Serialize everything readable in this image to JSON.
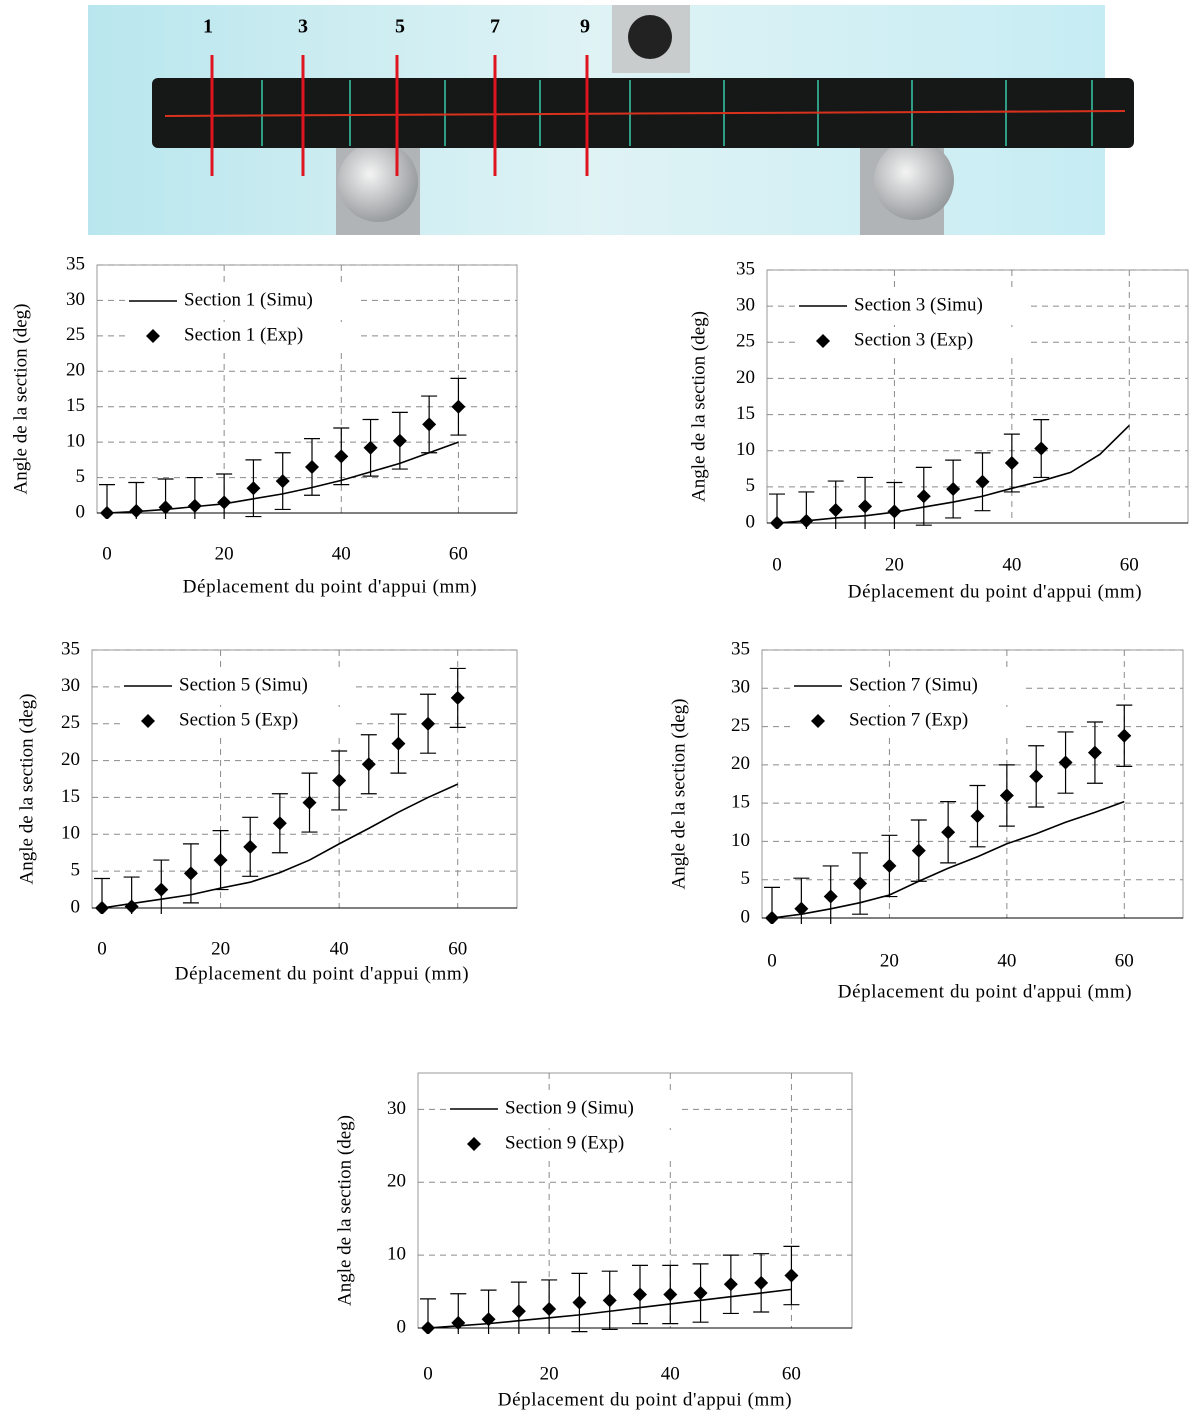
{
  "photo": {
    "section_labels": [
      "1",
      "3",
      "5",
      "7",
      "9"
    ]
  },
  "chart_data": [
    {
      "type": "line",
      "xlabel": "Déplacement du point d'appui (mm)",
      "ylabel": "Angle de la section (deg)",
      "xlim": [
        0,
        70
      ],
      "ylim": [
        0,
        35
      ],
      "xticks": [
        0,
        20,
        40,
        60
      ],
      "yticks": [
        0,
        5,
        10,
        15,
        20,
        25,
        30,
        35
      ],
      "grid": true,
      "legend": "upper left",
      "series": [
        {
          "name": "Section 1 (Simu)",
          "type": "line",
          "color": "#000000",
          "x": [
            0,
            5,
            10,
            15,
            20,
            25,
            30,
            35,
            40,
            45,
            50,
            55,
            60
          ],
          "values": [
            0,
            0.2,
            0.5,
            0.9,
            1.3,
            2,
            2.7,
            3.6,
            4.6,
            5.8,
            7,
            8.5,
            10
          ]
        },
        {
          "name": "Section 1 (Exp)",
          "type": "scatter",
          "color": "#000000",
          "x": [
            0,
            5,
            10,
            15,
            20,
            25,
            30,
            35,
            40,
            45,
            50,
            55,
            60
          ],
          "values": [
            0,
            0.3,
            0.8,
            1,
            1.5,
            3.5,
            4.5,
            6.5,
            8,
            9.2,
            10.2,
            12.5,
            15
          ],
          "errors": [
            4,
            4,
            4,
            4,
            4,
            4,
            4,
            4,
            4,
            4,
            4,
            4,
            4
          ]
        }
      ]
    },
    {
      "type": "line",
      "xlabel": "Déplacement du point d'appui (mm)",
      "ylabel": "Angle de la section (deg)",
      "xlim": [
        0,
        70
      ],
      "ylim": [
        0,
        35
      ],
      "xticks": [
        0,
        20,
        40,
        60
      ],
      "yticks": [
        0,
        5,
        10,
        15,
        20,
        25,
        30,
        35
      ],
      "grid": true,
      "legend": "upper left",
      "series": [
        {
          "name": "Section 3 (Simu)",
          "type": "line",
          "color": "#000000",
          "x": [
            0,
            5,
            10,
            15,
            20,
            25,
            30,
            35,
            40,
            45,
            50,
            55,
            60
          ],
          "values": [
            0,
            0.3,
            0.7,
            1,
            1.5,
            2.2,
            2.9,
            3.7,
            4.8,
            5.8,
            7,
            9.5,
            13.5
          ]
        },
        {
          "name": "Section 3 (Exp)",
          "type": "scatter",
          "color": "#000000",
          "x": [
            0,
            5,
            10,
            15,
            20,
            25,
            30,
            35,
            40,
            45
          ],
          "values": [
            0,
            0.3,
            1.8,
            2.3,
            1.6,
            3.7,
            4.7,
            5.7,
            8.3,
            10.3
          ],
          "errors": [
            4,
            4,
            4,
            4,
            4,
            4,
            4,
            4,
            4,
            4
          ]
        }
      ]
    },
    {
      "type": "line",
      "xlabel": "Déplacement du point d'appui (mm)",
      "ylabel": "Angle de la section (deg)",
      "xlim": [
        0,
        70
      ],
      "ylim": [
        0,
        35
      ],
      "xticks": [
        0,
        20,
        40,
        60
      ],
      "yticks": [
        0,
        5,
        10,
        15,
        20,
        25,
        30,
        35
      ],
      "grid": true,
      "legend": "upper left",
      "series": [
        {
          "name": "Section 5 (Simu)",
          "type": "line",
          "color": "#000000",
          "x": [
            0,
            5,
            10,
            15,
            20,
            25,
            30,
            35,
            40,
            45,
            50,
            55,
            60
          ],
          "values": [
            0,
            0.6,
            1.2,
            1.8,
            2.7,
            3.5,
            4.8,
            6.5,
            8.7,
            10.8,
            13,
            15,
            16.8
          ]
        },
        {
          "name": "Section 5 (Exp)",
          "type": "scatter",
          "color": "#000000",
          "x": [
            0,
            5,
            10,
            15,
            20,
            25,
            30,
            35,
            40,
            45,
            50,
            55,
            60
          ],
          "values": [
            0,
            0.2,
            2.5,
            4.7,
            6.5,
            8.3,
            11.5,
            14.3,
            17.3,
            19.5,
            22.3,
            25,
            28.5
          ],
          "errors": [
            4,
            4,
            4,
            4,
            4,
            4,
            4,
            4,
            4,
            4,
            4,
            4,
            4
          ]
        }
      ]
    },
    {
      "type": "line",
      "xlabel": "Déplacement du point d'appui (mm)",
      "ylabel": "Angle de la section (deg)",
      "xlim": [
        0,
        70
      ],
      "ylim": [
        0,
        35
      ],
      "xticks": [
        0,
        20,
        40,
        60
      ],
      "yticks": [
        0,
        5,
        10,
        15,
        20,
        25,
        30,
        35
      ],
      "grid": true,
      "legend": "upper left",
      "series": [
        {
          "name": "Section 7 (Simu)",
          "type": "line",
          "color": "#000000",
          "x": [
            0,
            5,
            10,
            15,
            20,
            25,
            30,
            35,
            40,
            45,
            50,
            55,
            60
          ],
          "values": [
            0,
            0.5,
            1.2,
            2,
            3,
            4.8,
            6.5,
            8,
            9.7,
            11,
            12.5,
            13.8,
            15.2
          ]
        },
        {
          "name": "Section 7 (Exp)",
          "type": "scatter",
          "color": "#000000",
          "x": [
            0,
            5,
            10,
            15,
            20,
            25,
            30,
            35,
            40,
            45,
            50,
            55,
            60
          ],
          "values": [
            0,
            1.2,
            2.8,
            4.5,
            6.8,
            8.8,
            11.2,
            13.3,
            16,
            18.5,
            20.3,
            21.6,
            23.8
          ],
          "errors": [
            4,
            4,
            4,
            4,
            4,
            4,
            4,
            4,
            4,
            4,
            4,
            4,
            4
          ]
        }
      ]
    },
    {
      "type": "line",
      "xlabel": "Déplacement du point d'appui (mm)",
      "ylabel": "Angle de la section (deg)",
      "xlim": [
        0,
        70
      ],
      "ylim": [
        0,
        35
      ],
      "xticks": [
        0,
        20,
        40,
        60
      ],
      "yticks": [
        0,
        10,
        20,
        30
      ],
      "grid": true,
      "legend": "upper left",
      "series": [
        {
          "name": "Section 9 (Simu)",
          "type": "line",
          "color": "#000000",
          "x": [
            0,
            5,
            10,
            15,
            20,
            25,
            30,
            35,
            40,
            45,
            50,
            55,
            60
          ],
          "values": [
            0,
            0.3,
            0.6,
            1,
            1.4,
            1.8,
            2.3,
            2.8,
            3.3,
            3.8,
            4.3,
            4.8,
            5.3
          ]
        },
        {
          "name": "Section 9 (Exp)",
          "type": "scatter",
          "color": "#000000",
          "x": [
            0,
            5,
            10,
            15,
            20,
            25,
            30,
            35,
            40,
            45,
            50,
            55,
            60
          ],
          "values": [
            0,
            0.7,
            1.2,
            2.3,
            2.6,
            3.5,
            3.8,
            4.6,
            4.6,
            4.8,
            6,
            6.2,
            7.2
          ],
          "errors": [
            4,
            4,
            4,
            4,
            4,
            4,
            4,
            4,
            4,
            4,
            4,
            4,
            4
          ]
        }
      ]
    }
  ]
}
